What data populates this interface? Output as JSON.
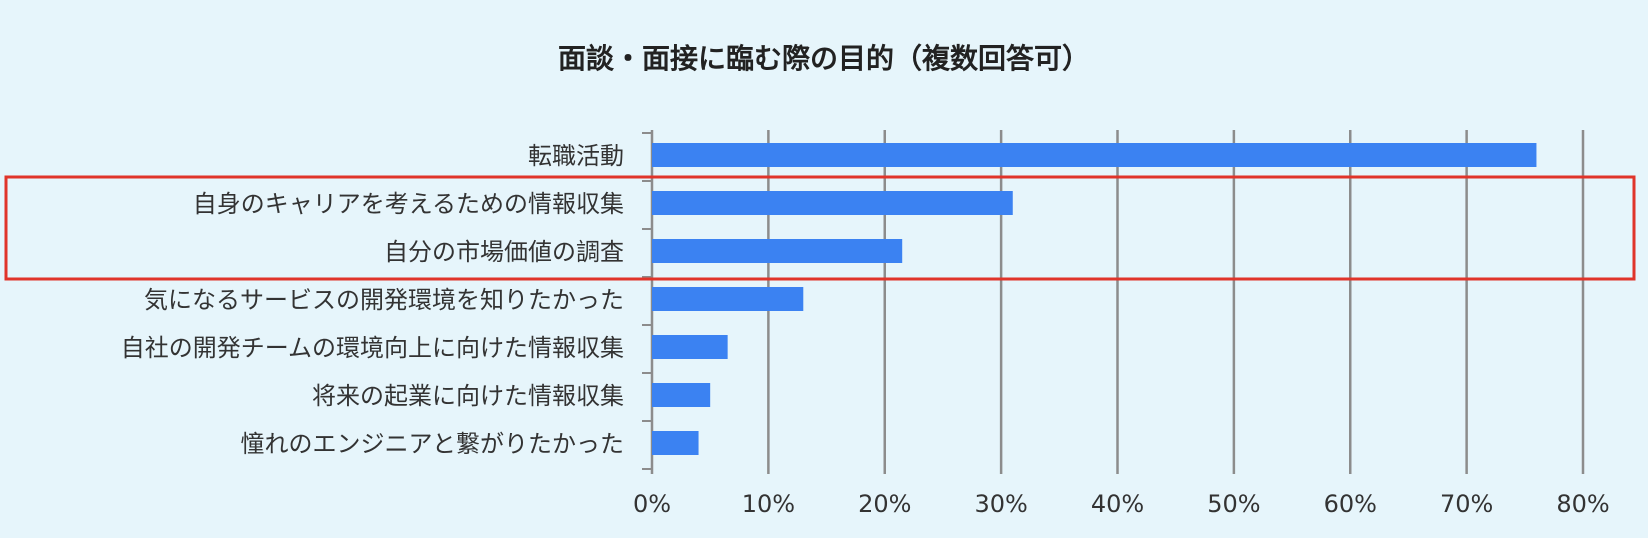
{
  "chart_data": {
    "type": "bar",
    "orientation": "horizontal",
    "title": "面談・面接に臨む際の目的（複数回答可）",
    "categories": [
      "転職活動",
      "自身のキャリアを考えるための情報収集",
      "自分の市場価値の調査",
      "気になるサービスの開発環境を知りたかった",
      "自社の開発チームの環境向上に向けた情報収集",
      "将来の起業に向けた情報収集",
      "憧れのエンジニアと繋がりたかった"
    ],
    "values": [
      76,
      31,
      21.5,
      13,
      6.5,
      5,
      4
    ],
    "xlim": [
      0,
      80
    ],
    "x_ticks": [
      "0%",
      "10%",
      "20%",
      "30%",
      "40%",
      "50%",
      "60%",
      "70%",
      "80%"
    ],
    "grid": true,
    "highlighted_categories": [
      1,
      2
    ],
    "colors": {
      "background": "#e6f5fb",
      "bar": "#3b82f2",
      "grid": "#8c8c8c",
      "highlight": "#e0342a",
      "text": "#333333"
    }
  }
}
